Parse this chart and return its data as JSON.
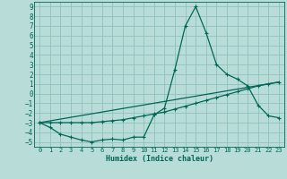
{
  "title": "",
  "xlabel": "Humidex (Indice chaleur)",
  "bg_color": "#b8ddd8",
  "grid_color": "#90c0ba",
  "line_color": "#006655",
  "xlim": [
    -0.5,
    23.5
  ],
  "ylim": [
    -5.5,
    9.5
  ],
  "xticks": [
    0,
    1,
    2,
    3,
    4,
    5,
    6,
    7,
    8,
    9,
    10,
    11,
    12,
    13,
    14,
    15,
    16,
    17,
    18,
    19,
    20,
    21,
    22,
    23
  ],
  "yticks": [
    -5,
    -4,
    -3,
    -2,
    -1,
    0,
    1,
    2,
    3,
    4,
    5,
    6,
    7,
    8,
    9
  ],
  "line1_x": [
    0,
    1,
    2,
    3,
    4,
    5,
    6,
    7,
    8,
    9,
    10,
    11,
    12,
    13,
    14,
    15,
    16,
    17,
    18,
    19,
    20,
    21,
    22,
    23
  ],
  "line1_y": [
    -3.0,
    -3.5,
    -4.2,
    -4.5,
    -4.8,
    -5.0,
    -4.8,
    -4.7,
    -4.8,
    -4.5,
    -4.5,
    -2.2,
    -1.5,
    2.5,
    7.0,
    9.0,
    6.3,
    3.0,
    2.0,
    1.5,
    0.8,
    -1.2,
    -2.3,
    -2.5
  ],
  "line2_x": [
    0,
    1,
    2,
    3,
    4,
    5,
    6,
    7,
    8,
    9,
    10,
    11,
    12,
    13,
    14,
    15,
    16,
    17,
    18,
    19,
    20,
    21,
    22,
    23
  ],
  "line2_y": [
    -3.0,
    -3.0,
    -3.0,
    -3.0,
    -3.0,
    -3.0,
    -2.9,
    -2.8,
    -2.7,
    -2.5,
    -2.3,
    -2.1,
    -1.9,
    -1.6,
    -1.3,
    -1.0,
    -0.7,
    -0.4,
    -0.1,
    0.2,
    0.5,
    0.8,
    1.0,
    1.2
  ],
  "line3_x": [
    0,
    23
  ],
  "line3_y": [
    -3.0,
    1.2
  ]
}
